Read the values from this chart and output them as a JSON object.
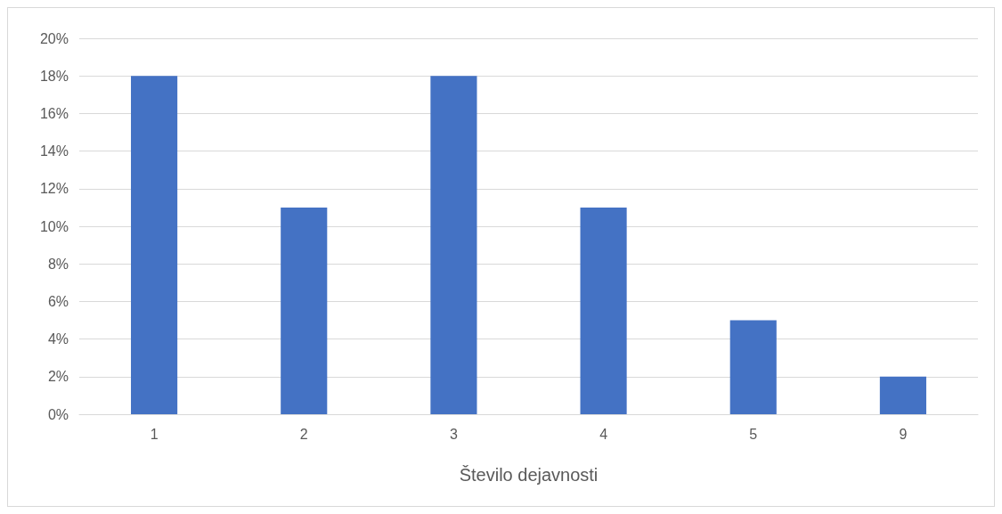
{
  "chart_data": {
    "type": "bar",
    "xlabel": "Število dejavnosti",
    "categories": [
      "1",
      "2",
      "3",
      "4",
      "5",
      "9"
    ],
    "values": [
      18,
      11,
      18,
      11,
      5,
      2
    ],
    "color": "#4472c4",
    "ylim": [
      0,
      20
    ],
    "yticks": [
      {
        "value": 0,
        "label": "0%"
      },
      {
        "value": 2,
        "label": "2%"
      },
      {
        "value": 4,
        "label": "4%"
      },
      {
        "value": 6,
        "label": "6%"
      },
      {
        "value": 8,
        "label": "8%"
      },
      {
        "value": 10,
        "label": "10%"
      },
      {
        "value": 12,
        "label": "12%"
      },
      {
        "value": 14,
        "label": "14%"
      },
      {
        "value": 16,
        "label": "16%"
      },
      {
        "value": 18,
        "label": "18%"
      },
      {
        "value": 20,
        "label": "20%"
      }
    ],
    "grid": "y"
  }
}
